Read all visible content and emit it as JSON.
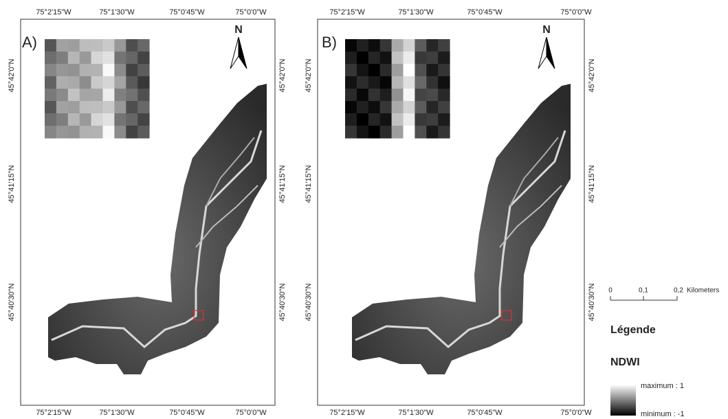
{
  "panels": [
    {
      "label": "A)",
      "north": "N"
    },
    {
      "label": "B)",
      "north": "N"
    }
  ],
  "axes": {
    "longitudes": [
      "75°2'15\"W",
      "75°1'30\"W",
      "75°0'45\"W",
      "75°0'0\"W"
    ],
    "latitudes": [
      "45°42'0\"N",
      "45°41'15\"N",
      "45°40'30\"N"
    ]
  },
  "scale_bar": {
    "ticks": [
      "0",
      "0,1",
      "0,2"
    ],
    "unit": "Kilometers"
  },
  "legend": {
    "title": "Légende",
    "layer": "NDWI",
    "maximum": "maximum : 1",
    "minimum": "minimum : -1"
  }
}
